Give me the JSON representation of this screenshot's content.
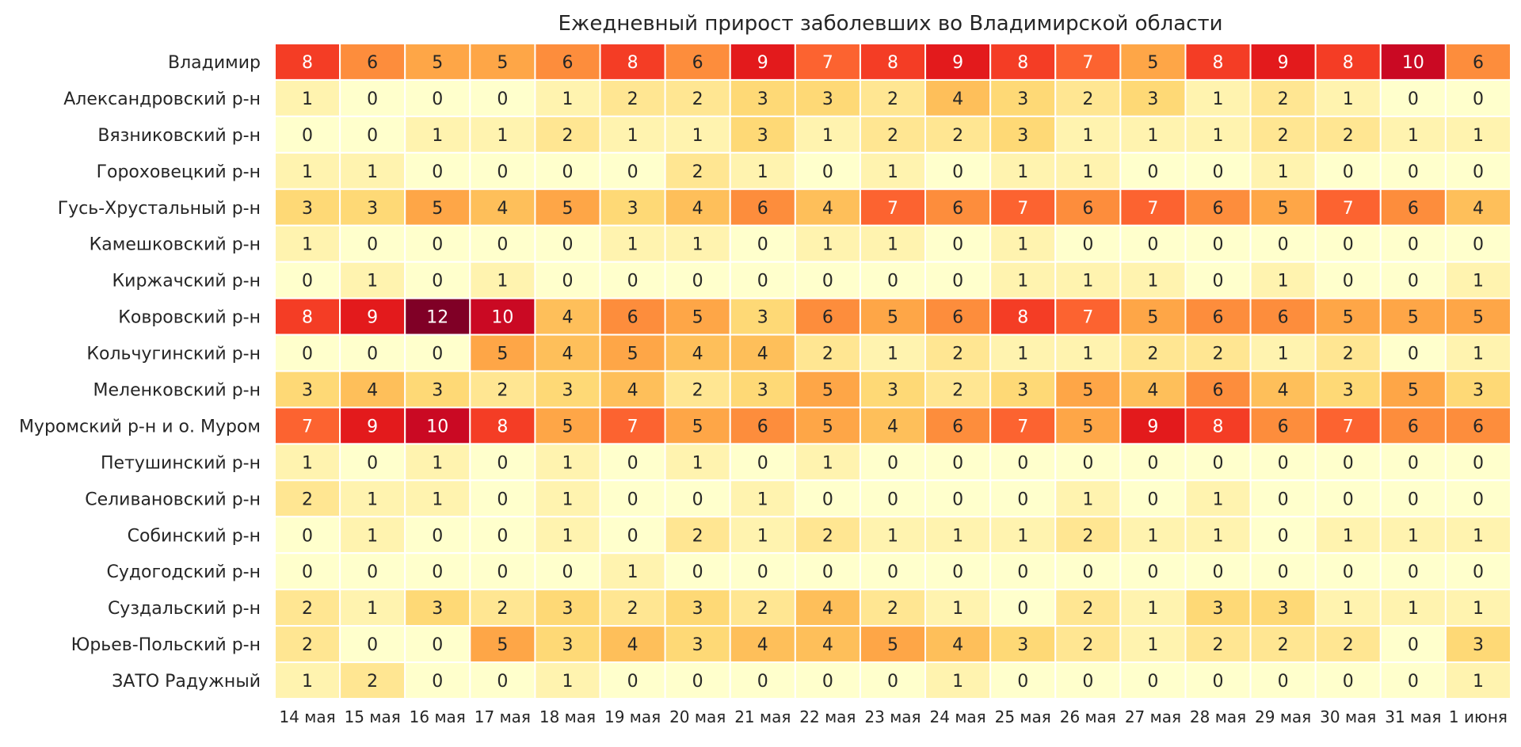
{
  "chart_data": {
    "type": "heatmap",
    "title": "Ежедневный прирост заболевших во Владимирской области",
    "xlabel": "",
    "ylabel": "",
    "columns": [
      "14 мая",
      "15 мая",
      "16 мая",
      "17 мая",
      "18 мая",
      "19 мая",
      "20 мая",
      "21 мая",
      "22 мая",
      "23 мая",
      "24 мая",
      "25 мая",
      "26 мая",
      "27 мая",
      "28 мая",
      "29 мая",
      "30 мая",
      "31 мая",
      "1 июня"
    ],
    "rows": [
      "Владимир",
      "Александровский р-н",
      "Вязниковский р-н",
      "Гороховецкий р-н",
      "Гусь-Хрустальный р-н",
      "Камешковский р-н",
      "Киржачский р-н",
      "Ковровский р-н",
      "Кольчугинский р-н",
      "Меленковский р-н",
      "Муромский р-н и о. Муром",
      "Петушинский р-н",
      "Селивановский р-н",
      "Собинский р-н",
      "Судогодский р-н",
      "Суздальский р-н",
      "Юрьев-Польский р-н",
      "ЗАТО Радужный"
    ],
    "values": [
      [
        8,
        6,
        5,
        5,
        6,
        8,
        6,
        9,
        7,
        8,
        9,
        8,
        7,
        5,
        8,
        9,
        8,
        10,
        6
      ],
      [
        1,
        0,
        0,
        0,
        1,
        2,
        2,
        3,
        3,
        2,
        4,
        3,
        2,
        3,
        1,
        2,
        1,
        0,
        0
      ],
      [
        0,
        0,
        1,
        1,
        2,
        1,
        1,
        3,
        1,
        2,
        2,
        3,
        1,
        1,
        1,
        2,
        2,
        1,
        1
      ],
      [
        1,
        1,
        0,
        0,
        0,
        0,
        2,
        1,
        0,
        1,
        0,
        1,
        1,
        0,
        0,
        1,
        0,
        0,
        0
      ],
      [
        3,
        3,
        5,
        4,
        5,
        3,
        4,
        6,
        4,
        7,
        6,
        7,
        6,
        7,
        6,
        5,
        7,
        6,
        4
      ],
      [
        1,
        0,
        0,
        0,
        0,
        1,
        1,
        0,
        1,
        1,
        0,
        1,
        0,
        0,
        0,
        0,
        0,
        0,
        0
      ],
      [
        0,
        1,
        0,
        1,
        0,
        0,
        0,
        0,
        0,
        0,
        0,
        1,
        1,
        1,
        0,
        1,
        0,
        0,
        1
      ],
      [
        8,
        9,
        12,
        10,
        4,
        6,
        5,
        3,
        6,
        5,
        6,
        8,
        7,
        5,
        6,
        6,
        5,
        5,
        5
      ],
      [
        0,
        0,
        0,
        5,
        4,
        5,
        4,
        4,
        2,
        1,
        2,
        1,
        1,
        2,
        2,
        1,
        2,
        0,
        1
      ],
      [
        3,
        4,
        3,
        2,
        3,
        4,
        2,
        3,
        5,
        3,
        2,
        3,
        5,
        4,
        6,
        4,
        3,
        5,
        3
      ],
      [
        7,
        9,
        10,
        8,
        5,
        7,
        5,
        6,
        5,
        4,
        6,
        7,
        5,
        9,
        8,
        6,
        7,
        6,
        6
      ],
      [
        1,
        0,
        1,
        0,
        1,
        0,
        1,
        0,
        1,
        0,
        0,
        0,
        0,
        0,
        0,
        0,
        0,
        0,
        0
      ],
      [
        2,
        1,
        1,
        0,
        1,
        0,
        0,
        1,
        0,
        0,
        0,
        0,
        1,
        0,
        1,
        0,
        0,
        0,
        0
      ],
      [
        0,
        1,
        0,
        0,
        1,
        0,
        2,
        1,
        2,
        1,
        1,
        1,
        2,
        1,
        1,
        0,
        1,
        1,
        1
      ],
      [
        0,
        0,
        0,
        0,
        0,
        1,
        0,
        0,
        0,
        0,
        0,
        0,
        0,
        0,
        0,
        0,
        0,
        0,
        0
      ],
      [
        2,
        1,
        3,
        2,
        3,
        2,
        3,
        2,
        4,
        2,
        1,
        0,
        2,
        1,
        3,
        3,
        1,
        1,
        1
      ],
      [
        2,
        0,
        0,
        5,
        3,
        4,
        3,
        4,
        4,
        5,
        4,
        3,
        2,
        1,
        2,
        2,
        2,
        0,
        3
      ],
      [
        1,
        2,
        0,
        0,
        1,
        0,
        0,
        0,
        0,
        0,
        1,
        0,
        0,
        0,
        0,
        0,
        0,
        0,
        1
      ]
    ],
    "value_range": [
      0,
      12
    ],
    "colormap": "YlOrRd",
    "annotated": true,
    "legend": "none",
    "grid": false
  }
}
